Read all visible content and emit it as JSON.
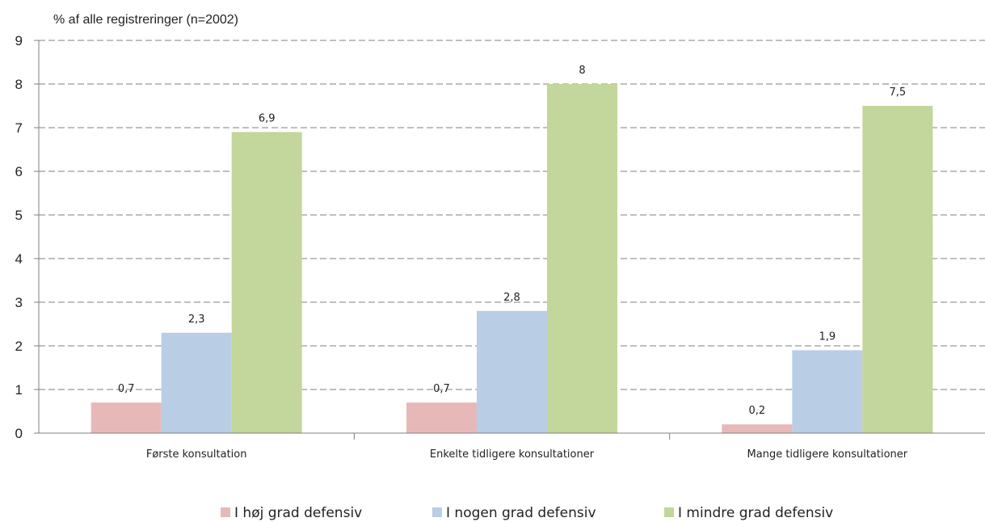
{
  "chart_data": {
    "type": "bar",
    "ylabel": "% af alle registreringer (n=2002)",
    "ylim": [
      0,
      9
    ],
    "yticks": [
      "0",
      "1",
      "2",
      "3",
      "4",
      "5",
      "6",
      "7",
      "8",
      "9"
    ],
    "grid": true,
    "legend_position": "bottom",
    "categories": [
      "Første konsultation",
      "Enkelte tidligere konsultationer",
      "Mange tidligere konsultationer"
    ],
    "series": [
      {
        "name": "I høj grad defensiv",
        "values": [
          0.7,
          0.7,
          0.2
        ],
        "labels": [
          "0,7",
          "0,7",
          "0,2"
        ],
        "color": "#e6b9b8"
      },
      {
        "name": "I nogen grad defensiv",
        "values": [
          2.3,
          2.8,
          1.9
        ],
        "labels": [
          "2,3",
          "2,8",
          "1,9"
        ],
        "color": "#b9cde5"
      },
      {
        "name": "I mindre grad defensiv",
        "values": [
          6.9,
          8,
          7.5
        ],
        "labels": [
          "6,9",
          "8",
          "7,5"
        ],
        "color": "#c3d69b"
      }
    ]
  }
}
